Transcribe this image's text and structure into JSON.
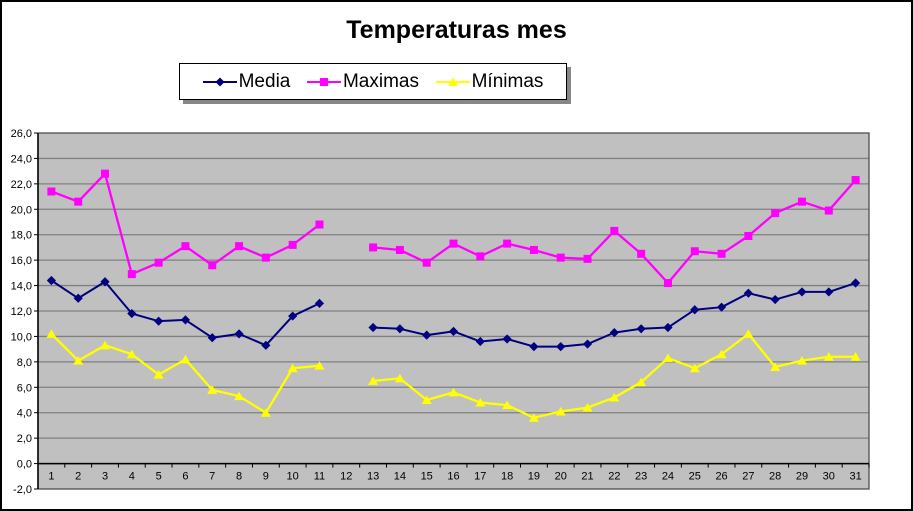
{
  "title": "Temperaturas mes",
  "colors": {
    "plot_background": "#C0C0C0",
    "gridline": "#808080",
    "axis": "#000000",
    "frame_border": "#000000",
    "legend_shadow": "#878787",
    "media": "#000080",
    "maximas": "#FF00FF",
    "minimas": "#FFFF00"
  },
  "legend": {
    "position": "top",
    "items": [
      {
        "label": "Media",
        "marker": "diamond",
        "color": "#000080"
      },
      {
        "label": "Maximas",
        "marker": "square",
        "color": "#FF00FF"
      },
      {
        "label": "Mínimas",
        "marker": "triangle",
        "color": "#FFFF00"
      }
    ]
  },
  "chart_data": {
    "type": "line",
    "title": "Temperaturas mes",
    "xlabel": "",
    "ylabel": "",
    "ylim": [
      -2,
      26
    ],
    "y_step": 2,
    "grid": true,
    "legend_position": "top",
    "plot_bg": "#C0C0C0",
    "y_tick_labels": [
      "26,0",
      "24,0",
      "22,0",
      "20,0",
      "18,0",
      "16,0",
      "14,0",
      "12,0",
      "10,0",
      "8,0",
      "6,0",
      "4,0",
      "2,0",
      "0,0",
      "-2,0"
    ],
    "categories": [
      "1",
      "2",
      "3",
      "4",
      "5",
      "6",
      "7",
      "8",
      "9",
      "10",
      "11",
      "12",
      "13",
      "14",
      "15",
      "16",
      "17",
      "18",
      "19",
      "20",
      "21",
      "22",
      "23",
      "24",
      "25",
      "26",
      "27",
      "28",
      "29",
      "30",
      "31"
    ],
    "series": [
      {
        "name": "Media",
        "color": "#000080",
        "marker": "diamond",
        "values": [
          14.4,
          13.0,
          14.3,
          11.8,
          11.2,
          11.3,
          9.9,
          10.2,
          9.3,
          11.6,
          12.6,
          null,
          10.7,
          10.6,
          10.1,
          10.4,
          9.6,
          9.8,
          9.2,
          9.2,
          9.4,
          10.3,
          10.6,
          10.7,
          12.1,
          12.3,
          13.4,
          12.9,
          13.5,
          13.5,
          14.2
        ]
      },
      {
        "name": "Maximas",
        "color": "#FF00FF",
        "marker": "square",
        "values": [
          21.4,
          20.6,
          22.8,
          14.9,
          15.8,
          17.1,
          15.6,
          17.1,
          16.2,
          17.2,
          18.8,
          null,
          17.0,
          16.8,
          15.8,
          17.3,
          16.3,
          17.3,
          16.8,
          16.2,
          16.1,
          18.3,
          16.5,
          14.2,
          16.7,
          16.5,
          17.9,
          19.7,
          20.6,
          19.9,
          22.3
        ]
      },
      {
        "name": "Mínimas",
        "color": "#FFFF00",
        "marker": "triangle",
        "values": [
          10.2,
          8.1,
          9.3,
          8.6,
          7.0,
          8.2,
          5.8,
          5.3,
          4.0,
          7.5,
          7.7,
          null,
          6.5,
          6.7,
          5.0,
          5.6,
          4.8,
          4.6,
          3.6,
          4.1,
          4.4,
          5.2,
          6.4,
          8.3,
          7.5,
          8.6,
          10.2,
          7.6,
          8.1,
          8.4,
          8.4
        ]
      }
    ]
  }
}
